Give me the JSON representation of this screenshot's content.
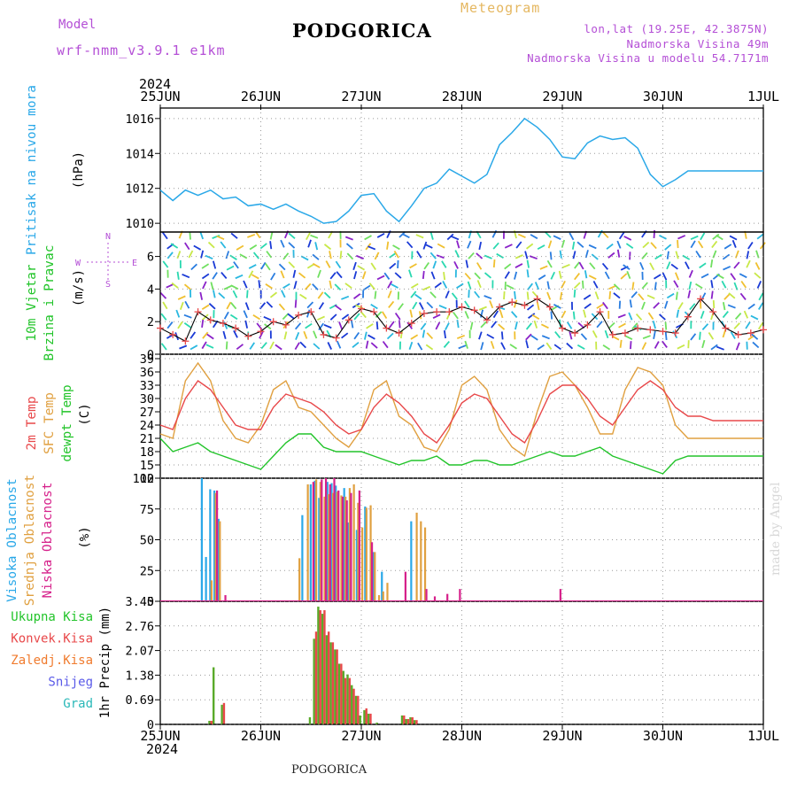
{
  "header": {
    "model_label": "Model",
    "model_value": "wrf-nmm_v3.9.1 e1km",
    "title": "PODGORICA",
    "meteogram_label": "Meteogram",
    "location": "lon,lat (19.25E, 42.3875N)",
    "elevation": "Nadmorska Visina 49m",
    "model_elevation": "Nadmorska Visina u modelu 54.7171m"
  },
  "footer": {
    "city": "PODGORICA"
  },
  "credit": "made by Angel",
  "time_axis": {
    "year": "2024",
    "labels": [
      "25JUN",
      "26JUN",
      "27JUN",
      "28JUN",
      "29JUN",
      "30JUN",
      "1JUL"
    ]
  },
  "colors": {
    "pressure": "#2aa8e8",
    "temp_2m": "#e8484a",
    "temp_sfc": "#e0a040",
    "dewpoint": "#22c42a",
    "high_cloud": "#2aa8e8",
    "mid_cloud": "#e0a040",
    "low_cloud": "#d6208a",
    "precip_total": "#5aaa2a",
    "precip_convective": "#e8484a",
    "purple_label": "#b44fd6"
  },
  "panels": {
    "pressure": {
      "ylabel": "(hPa)",
      "side_label": "Pritisak na nivou mora",
      "ticks": [
        "1010",
        "1012",
        "1014",
        "1016"
      ]
    },
    "wind": {
      "ylabel": "(m/s)",
      "side_label_1": "10m Vjetar",
      "side_label_2": "Brzina i Pravac",
      "ticks": [
        "0",
        "2",
        "4",
        "6"
      ],
      "compass_n": "N",
      "compass_s": "S",
      "compass_w": "W",
      "compass_e": "E"
    },
    "temperature": {
      "ylabel": "(C)",
      "label_2m": "2m Temp",
      "label_sfc": "SFC Temp",
      "label_dew": "dewpt Temp",
      "ticks": [
        "12",
        "15",
        "18",
        "21",
        "24",
        "27",
        "30",
        "33",
        "36",
        "39"
      ]
    },
    "clouds": {
      "ylabel": "(%)",
      "label_high": "Visoka Oblacnost",
      "label_mid": "Srednja Oblacnost",
      "label_low": "Niska Oblacnost",
      "ticks": [
        "0",
        "25",
        "50",
        "75",
        "100"
      ]
    },
    "precip": {
      "ylabel": "1hr Precip (mm)",
      "ticks": [
        "0",
        "0.69",
        "1.38",
        "2.07",
        "2.76",
        "3.45"
      ],
      "legend": [
        "Ukupna Kisa",
        "Konvek.Kisa",
        "Zaledj.Kisa",
        "Snijeg",
        "Grad"
      ],
      "legend_colors": [
        "#22c42a",
        "#e8484a",
        "#f07b2e",
        "#5a5ae8",
        "#2ab8b8"
      ]
    }
  },
  "chart_data": [
    {
      "type": "line",
      "title": "Pritisak na nivou mora",
      "ylabel": "(hPa)",
      "ylim": [
        1009.5,
        1016.6
      ],
      "x_unit": "hours from 25JUN 00UTC",
      "series": [
        {
          "name": "Pritisak na nivou mora",
          "x": [
            0,
            3,
            6,
            9,
            12,
            15,
            18,
            21,
            24,
            27,
            30,
            33,
            36,
            39,
            42,
            45,
            48,
            51,
            54,
            57,
            60,
            63,
            66,
            69,
            72,
            75,
            78,
            81,
            84,
            87,
            90,
            93,
            96,
            99,
            102,
            105,
            108,
            111,
            114,
            117,
            120,
            123,
            126,
            129,
            132,
            135,
            138,
            141,
            144
          ],
          "values": [
            1011.9,
            1011.3,
            1011.9,
            1011.6,
            1011.9,
            1011.4,
            1011.5,
            1011.0,
            1011.1,
            1010.8,
            1011.1,
            1010.7,
            1010.4,
            1010.0,
            1010.1,
            1010.7,
            1011.6,
            1011.7,
            1010.7,
            1010.1,
            1011.0,
            1012.0,
            1012.3,
            1013.1,
            1012.7,
            1012.3,
            1012.8,
            1014.5,
            1015.2,
            1016.0,
            1015.5,
            1014.8,
            1013.8,
            1013.7,
            1014.6,
            1015.0,
            1014.8,
            1014.9,
            1014.3,
            1012.8,
            1012.1,
            1012.5,
            1013.0,
            1013.0,
            1013.0,
            1013.0,
            1013.0,
            1013.0,
            1013.0
          ]
        }
      ]
    },
    {
      "type": "line",
      "title": "10m Vjetar Brzina i Pravac",
      "ylabel": "(m/s)",
      "ylim": [
        0,
        7.5
      ],
      "x_unit": "hours from 25JUN 00UTC",
      "series": [
        {
          "name": "10m Vjetar",
          "x": [
            0,
            3,
            6,
            9,
            12,
            15,
            18,
            21,
            24,
            27,
            30,
            33,
            36,
            39,
            42,
            45,
            48,
            51,
            54,
            57,
            60,
            63,
            66,
            69,
            72,
            75,
            78,
            81,
            84,
            87,
            90,
            93,
            96,
            99,
            102,
            105,
            108,
            111,
            114,
            117,
            120,
            123,
            126,
            129,
            132,
            135,
            138,
            141,
            144
          ],
          "values": [
            1.6,
            1.2,
            0.8,
            2.6,
            2.1,
            1.9,
            1.6,
            1.1,
            1.4,
            2.0,
            1.8,
            2.4,
            2.6,
            1.2,
            1.0,
            2.1,
            2.8,
            2.6,
            1.6,
            1.3,
            1.9,
            2.5,
            2.6,
            2.6,
            2.9,
            2.7,
            2.1,
            2.9,
            3.2,
            3.0,
            3.4,
            2.9,
            1.6,
            1.3,
            1.8,
            2.6,
            1.2,
            1.3,
            1.6,
            1.5,
            1.4,
            1.3,
            2.3,
            3.4,
            2.6,
            1.6,
            1.2,
            1.3,
            1.5
          ]
        }
      ]
    },
    {
      "type": "line",
      "title": "Temperature",
      "ylabel": "(C)",
      "ylim": [
        12,
        40
      ],
      "x_unit": "hours from 25JUN 00UTC",
      "series": [
        {
          "name": "2m Temp",
          "x": [
            0,
            3,
            6,
            9,
            12,
            15,
            18,
            21,
            24,
            27,
            30,
            33,
            36,
            39,
            42,
            45,
            48,
            51,
            54,
            57,
            60,
            63,
            66,
            69,
            72,
            75,
            78,
            81,
            84,
            87,
            90,
            93,
            96,
            99,
            102,
            105,
            108,
            111,
            114,
            117,
            120,
            123,
            126,
            129,
            132,
            135,
            138,
            141,
            144
          ],
          "values": [
            24,
            23,
            30,
            34,
            32,
            28,
            24,
            23,
            23,
            28,
            31,
            30,
            29,
            27,
            24,
            22,
            23,
            28,
            31,
            29,
            26,
            22,
            20,
            24,
            29,
            31,
            30,
            26,
            22,
            20,
            25,
            31,
            33,
            33,
            30,
            26,
            24,
            28,
            32,
            34,
            32,
            28,
            26,
            26,
            25,
            25,
            25,
            25,
            25
          ]
        },
        {
          "name": "SFC Temp",
          "x": [
            0,
            3,
            6,
            9,
            12,
            15,
            18,
            21,
            24,
            27,
            30,
            33,
            36,
            39,
            42,
            45,
            48,
            51,
            54,
            57,
            60,
            63,
            66,
            69,
            72,
            75,
            78,
            81,
            84,
            87,
            90,
            93,
            96,
            99,
            102,
            105,
            108,
            111,
            114,
            117,
            120,
            123,
            126,
            129,
            132,
            135,
            138,
            141,
            144
          ],
          "values": [
            22,
            21,
            34,
            38,
            34,
            25,
            21,
            20,
            24,
            32,
            34,
            28,
            27,
            24,
            21,
            19,
            23,
            32,
            34,
            26,
            24,
            19,
            18,
            23,
            33,
            35,
            32,
            23,
            19,
            17,
            27,
            35,
            36,
            33,
            28,
            22,
            22,
            32,
            37,
            36,
            33,
            24,
            21,
            21,
            21,
            21,
            21,
            21,
            21
          ]
        },
        {
          "name": "dewpt Temp",
          "x": [
            0,
            3,
            6,
            9,
            12,
            15,
            18,
            21,
            24,
            27,
            30,
            33,
            36,
            39,
            42,
            45,
            48,
            51,
            54,
            57,
            60,
            63,
            66,
            69,
            72,
            75,
            78,
            81,
            84,
            87,
            90,
            93,
            96,
            99,
            102,
            105,
            108,
            111,
            114,
            117,
            120,
            123,
            126,
            129,
            132,
            135,
            138,
            141,
            144
          ],
          "values": [
            21,
            18,
            19,
            20,
            18,
            17,
            16,
            15,
            14,
            17,
            20,
            22,
            22,
            19,
            18,
            18,
            18,
            17,
            16,
            15,
            16,
            16,
            17,
            15,
            15,
            16,
            16,
            15,
            15,
            16,
            17,
            18,
            17,
            17,
            18,
            19,
            17,
            16,
            15,
            14,
            13,
            16,
            17,
            17,
            17,
            17,
            17,
            17,
            17
          ]
        }
      ]
    },
    {
      "type": "bar",
      "title": "Oblacnost",
      "ylabel": "(%)",
      "ylim": [
        0,
        100
      ],
      "x_unit": "hours from 25JUN 00UTC",
      "series": [
        {
          "name": "Visoka Oblacnost",
          "x": [
            10,
            11,
            12,
            13,
            14,
            34,
            36,
            37,
            38,
            40,
            41,
            42,
            44,
            45,
            47,
            49,
            51,
            53,
            60
          ],
          "values": [
            100,
            36,
            91,
            90,
            67,
            70,
            95,
            98,
            84,
            97,
            96,
            94,
            92,
            64,
            58,
            77,
            40,
            24,
            65
          ]
        },
        {
          "name": "Srednja Oblacnost",
          "x": [
            12,
            13,
            14,
            33,
            35,
            37,
            38,
            39,
            40,
            41,
            42,
            43,
            44,
            45,
            46,
            47,
            48,
            49,
            50,
            51,
            52,
            53,
            54,
            61,
            62,
            63
          ],
          "values": [
            17,
            88,
            65,
            35,
            95,
            99,
            97,
            85,
            87,
            88,
            89,
            86,
            85,
            92,
            95,
            80,
            60,
            76,
            78,
            40,
            5,
            8,
            15,
            72,
            65,
            60
          ]
        },
        {
          "name": "Niska Oblacnost",
          "x": [
            13,
            15,
            36,
            38,
            39,
            40,
            41,
            42,
            43,
            44,
            45,
            47,
            50,
            58,
            63,
            65,
            68,
            71,
            95
          ],
          "values": [
            90,
            5,
            97,
            99,
            100,
            95,
            100,
            90,
            85,
            82,
            88,
            90,
            48,
            24,
            10,
            4,
            6,
            10,
            10
          ]
        }
      ]
    },
    {
      "type": "bar",
      "title": "1hr Precip",
      "ylabel": "1hr Precip (mm)",
      "ylim": [
        0,
        3.45
      ],
      "x_unit": "hours from 25JUN 00UTC",
      "series": [
        {
          "name": "Ukupna Kisa",
          "x": [
            12,
            13,
            15,
            36,
            37,
            38,
            39,
            40,
            41,
            42,
            43,
            44,
            45,
            46,
            47,
            48,
            49,
            50,
            52,
            58,
            59,
            60,
            61
          ],
          "values": [
            0.1,
            1.6,
            0.55,
            0.2,
            2.4,
            3.3,
            3.1,
            2.5,
            2.3,
            2.1,
            1.7,
            1.5,
            1.4,
            1.1,
            0.8,
            0.25,
            0.4,
            0.3,
            0.05,
            0.25,
            0.15,
            0.2,
            0.12
          ]
        },
        {
          "name": "Konvek.Kisa",
          "x": [
            12,
            15,
            37,
            38,
            39,
            40,
            41,
            42,
            43,
            44,
            45,
            46,
            47,
            49,
            50,
            58,
            59,
            60,
            61
          ],
          "values": [
            0.1,
            0.6,
            2.6,
            3.2,
            3.2,
            2.6,
            2.3,
            2.1,
            1.7,
            1.3,
            1.3,
            1.0,
            0.8,
            0.45,
            0.3,
            0.25,
            0.15,
            0.2,
            0.12
          ]
        }
      ]
    }
  ]
}
